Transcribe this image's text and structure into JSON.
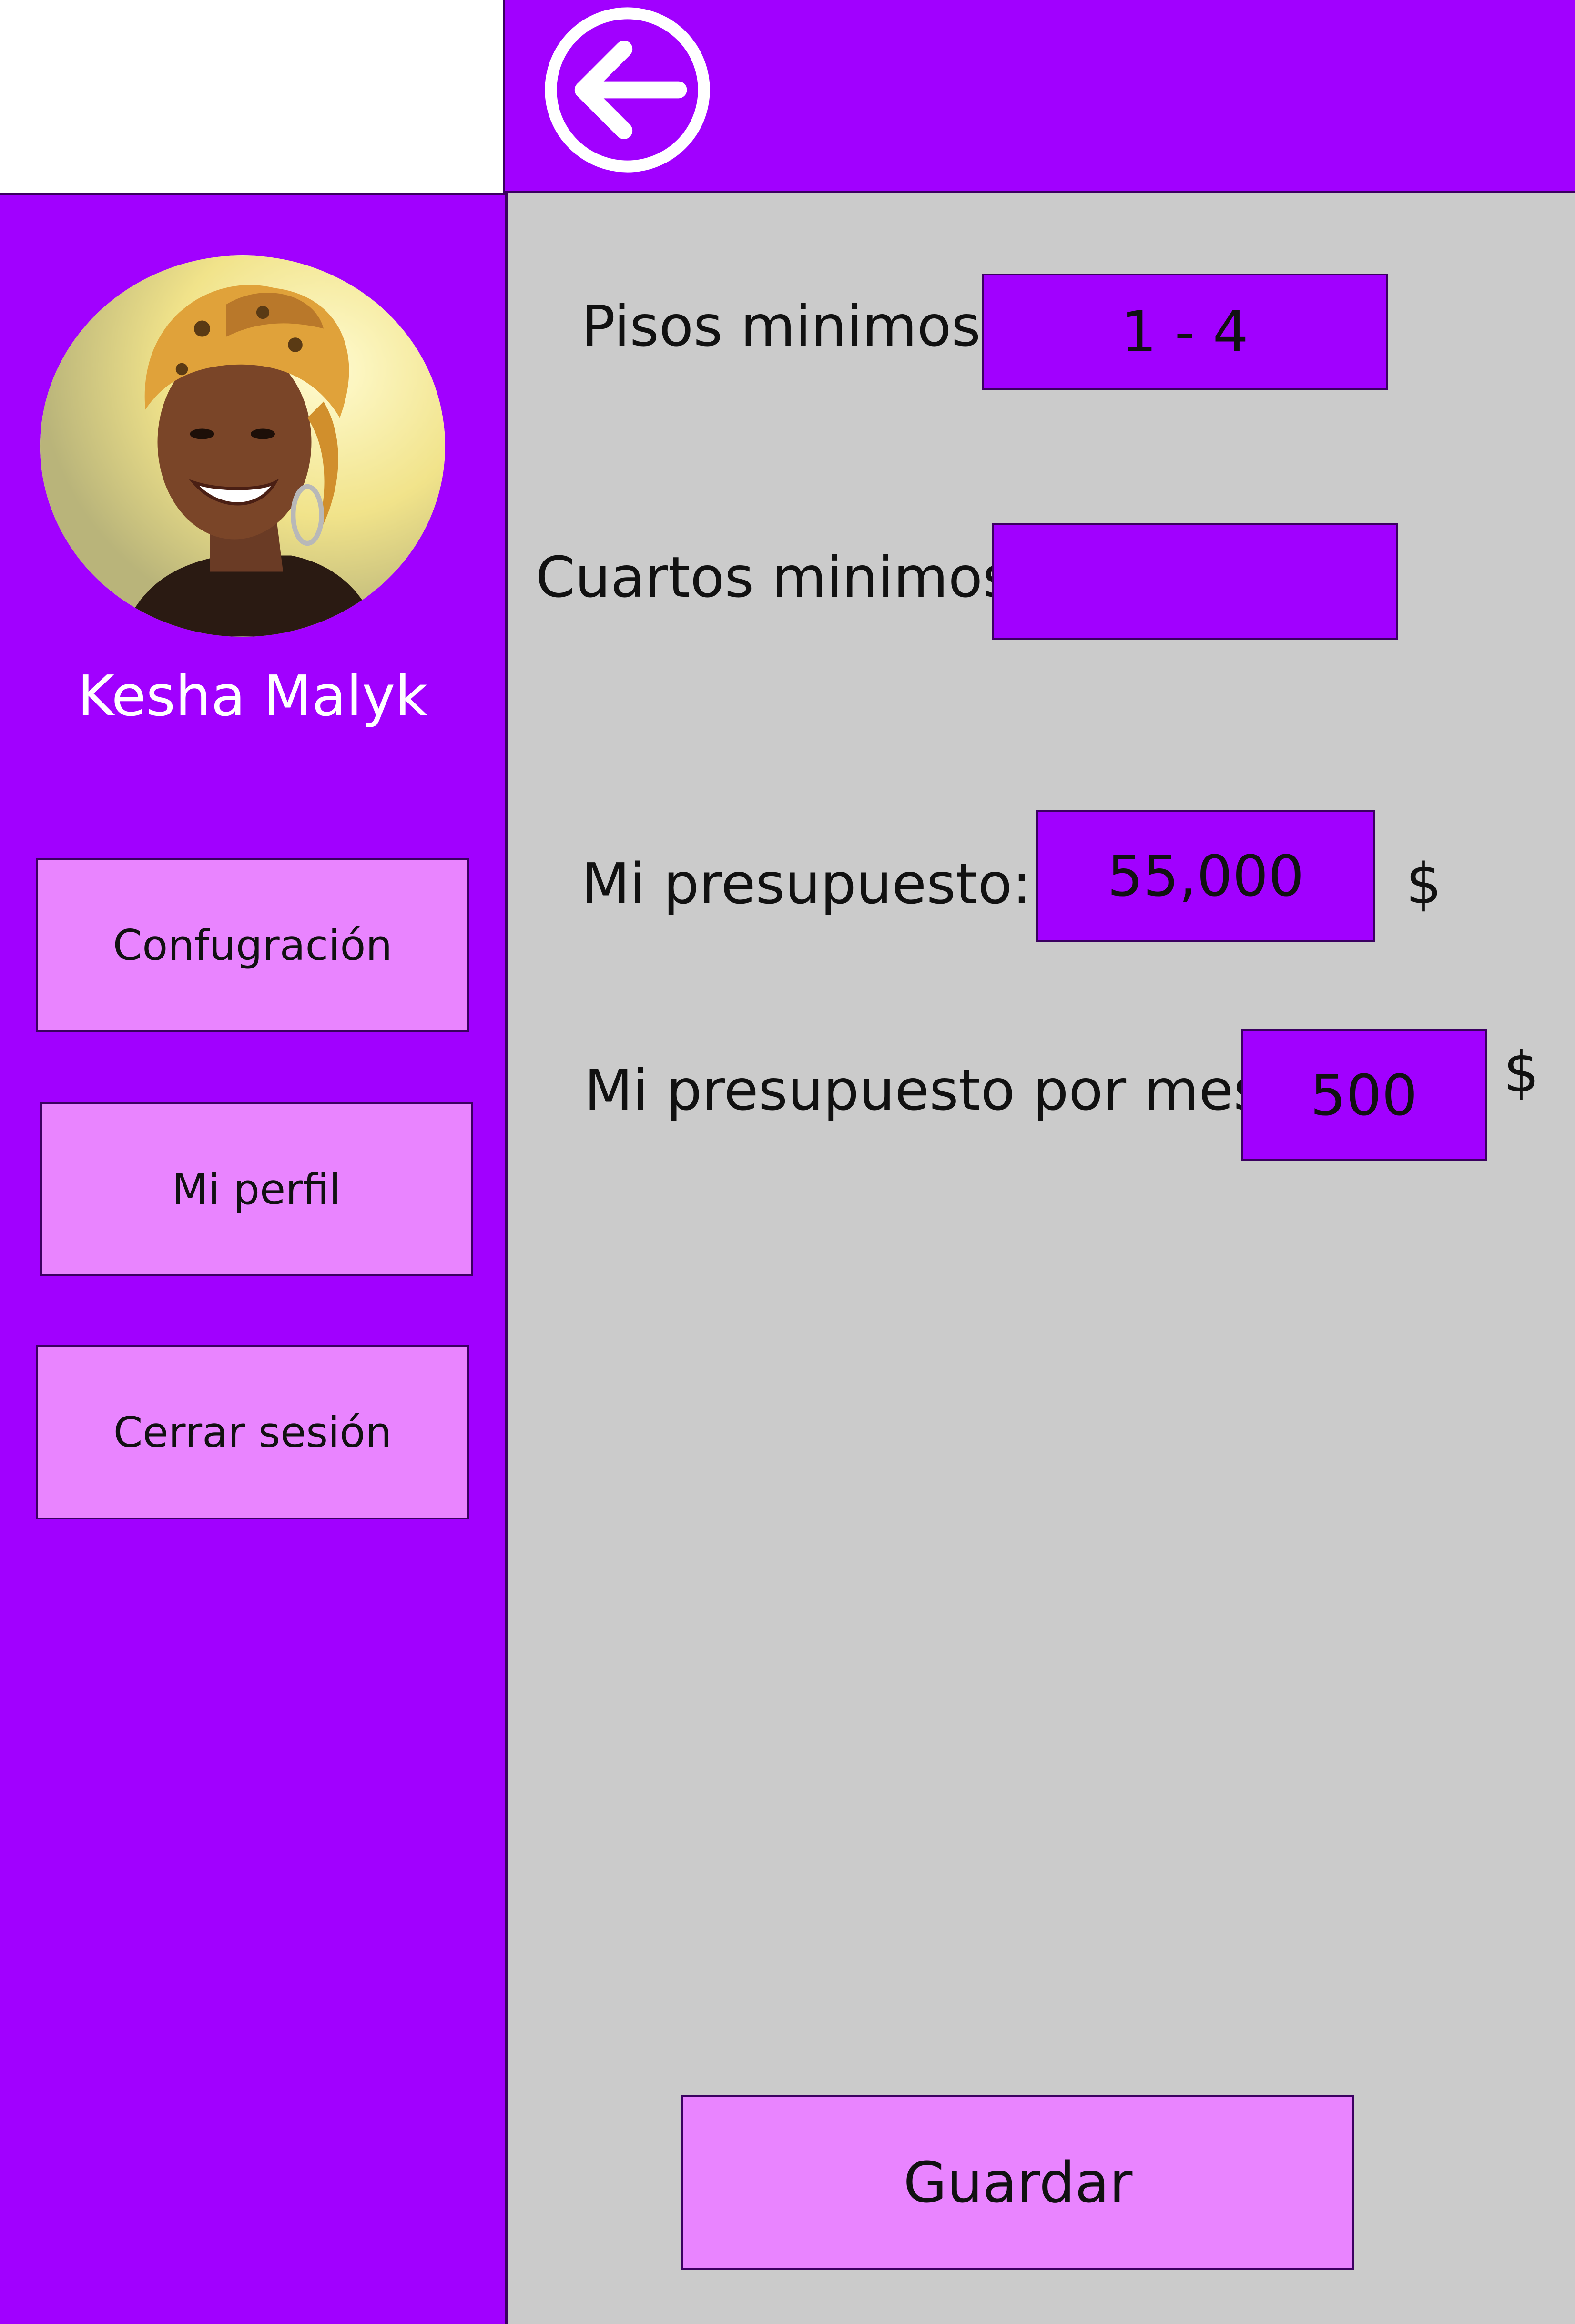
{
  "header": {
    "back_icon": "arrow-left-circle-icon"
  },
  "sidebar": {
    "user_name": "Kesha Malyk",
    "avatar_icon": "profile-photo",
    "items": [
      {
        "label": "Confugración"
      },
      {
        "label": "Mi perfil"
      },
      {
        "label": "Cerrar sesión"
      }
    ]
  },
  "form": {
    "pisos": {
      "label": "Pisos minimos:",
      "value": "1 - 4"
    },
    "cuartos": {
      "label": "Cuartos minimos:",
      "value": ""
    },
    "presupuesto": {
      "label": "Mi presupuesto:",
      "value": "55,000",
      "currency": "$"
    },
    "presupuesto_mes": {
      "label": "Mi presupuesto por mes:",
      "value": "500",
      "currency": "$"
    },
    "save_label": "Guardar"
  },
  "colors": {
    "primary": "#a100ff",
    "button": "#e984ff",
    "content_bg": "#cbcbcb"
  }
}
